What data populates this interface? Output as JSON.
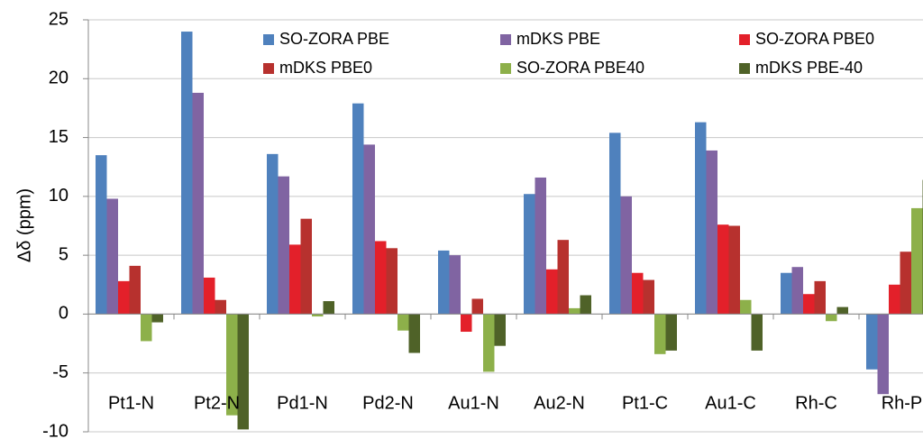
{
  "chart_data": {
    "type": "bar",
    "y_label": "Δδ (ppm)",
    "categories": [
      "Pt1-N",
      "Pt2-N",
      "Pd1-N",
      "Pd2-N",
      "Au1-N",
      "Au2-N",
      "Pt1-C",
      "Au1-C",
      "Rh-C",
      "Rh-P"
    ],
    "series": [
      {
        "name": "SO-ZORA PBE",
        "color": "#4f81bd",
        "values": [
          13.5,
          24.0,
          13.6,
          17.9,
          5.4,
          10.2,
          15.4,
          16.3,
          3.5,
          -4.7
        ]
      },
      {
        "name": "mDKS PBE",
        "color": "#8064a2",
        "values": [
          9.8,
          18.8,
          11.7,
          14.4,
          5.0,
          11.6,
          10.0,
          13.9,
          4.0,
          -6.8
        ]
      },
      {
        "name": "SO-ZORA PBE0",
        "color": "#e3202a",
        "values": [
          2.8,
          3.1,
          5.9,
          6.2,
          -1.5,
          3.8,
          3.5,
          7.6,
          1.7,
          2.5
        ]
      },
      {
        "name": "mDKS PBE0",
        "color": "#b7312e",
        "values": [
          4.1,
          1.2,
          8.1,
          5.6,
          1.3,
          6.3,
          2.9,
          7.5,
          2.8,
          5.3
        ]
      },
      {
        "name": "SO-ZORA PBE40",
        "color": "#8db04a",
        "values": [
          -2.3,
          -8.6,
          -0.2,
          -1.4,
          -4.9,
          0.5,
          -3.4,
          1.2,
          -0.6,
          9.0
        ]
      },
      {
        "name": "mDKS PBE-40",
        "color": "#4f6228",
        "values": [
          -0.7,
          -9.8,
          1.1,
          -3.3,
          -2.7,
          1.6,
          -3.1,
          -3.1,
          0.6,
          11.4
        ]
      }
    ],
    "ylim": [
      -10,
      25
    ],
    "yticks": [
      -10,
      -5,
      0,
      5,
      10,
      15,
      20,
      25
    ],
    "grid": true,
    "legend": "top"
  }
}
